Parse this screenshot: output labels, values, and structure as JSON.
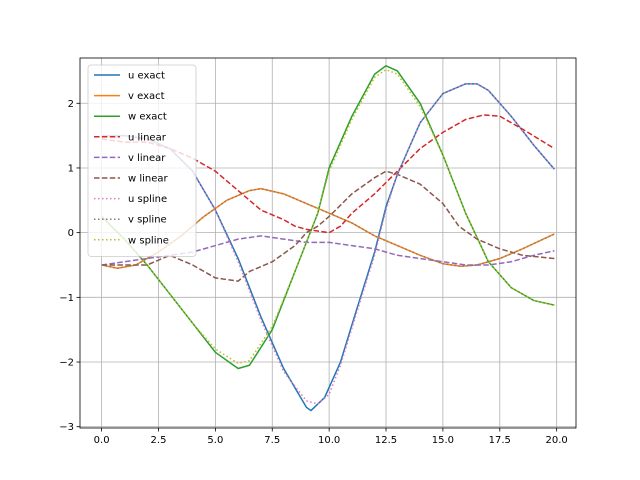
{
  "chart_data": {
    "type": "line",
    "title": "",
    "xlabel": "",
    "ylabel": "",
    "xlim": [
      -0.95,
      20.85
    ],
    "ylim": [
      -3.02,
      2.7
    ],
    "xticks": [
      0.0,
      2.5,
      5.0,
      7.5,
      10.0,
      12.5,
      15.0,
      17.5,
      20.0
    ],
    "xtick_labels": [
      "0.0",
      "2.5",
      "5.0",
      "7.5",
      "10.0",
      "12.5",
      "15.0",
      "17.5",
      "20.0"
    ],
    "yticks": [
      -3,
      -2,
      -1,
      0,
      1,
      2
    ],
    "ytick_labels": [
      "−3",
      "−2",
      "−1",
      "0",
      "1",
      "2"
    ],
    "grid": true,
    "legend_position": "top-left",
    "series": [
      {
        "name": "u exact",
        "color": "#1f77b4",
        "style": "solid",
        "points": [
          [
            0,
            1.5
          ],
          [
            1,
            1.5
          ],
          [
            2,
            1.45
          ],
          [
            3,
            1.3
          ],
          [
            4,
            0.95
          ],
          [
            5,
            0.35
          ],
          [
            6,
            -0.4
          ],
          [
            7,
            -1.3
          ],
          [
            8,
            -2.1
          ],
          [
            9,
            -2.7
          ],
          [
            9.2,
            -2.75
          ],
          [
            9.8,
            -2.55
          ],
          [
            10.5,
            -2.0
          ],
          [
            11.2,
            -1.2
          ],
          [
            12,
            -0.3
          ],
          [
            12.5,
            0.4
          ],
          [
            13,
            0.9
          ],
          [
            14,
            1.7
          ],
          [
            15,
            2.15
          ],
          [
            16,
            2.3
          ],
          [
            16.5,
            2.3
          ],
          [
            17,
            2.2
          ],
          [
            18,
            1.8
          ],
          [
            19,
            1.35
          ],
          [
            19.9,
            0.98
          ]
        ]
      },
      {
        "name": "v exact",
        "color": "#ff7f0e",
        "style": "solid",
        "points": [
          [
            0,
            -0.5
          ],
          [
            0.7,
            -0.55
          ],
          [
            1.5,
            -0.5
          ],
          [
            2.5,
            -0.3
          ],
          [
            3.5,
            -0.05
          ],
          [
            4.5,
            0.25
          ],
          [
            5.5,
            0.5
          ],
          [
            6.5,
            0.65
          ],
          [
            7,
            0.68
          ],
          [
            8,
            0.6
          ],
          [
            9,
            0.45
          ],
          [
            10,
            0.3
          ],
          [
            11,
            0.15
          ],
          [
            12,
            -0.05
          ],
          [
            13,
            -0.2
          ],
          [
            14,
            -0.35
          ],
          [
            15,
            -0.48
          ],
          [
            15.8,
            -0.52
          ],
          [
            16.5,
            -0.5
          ],
          [
            17.5,
            -0.4
          ],
          [
            18.5,
            -0.25
          ],
          [
            19.9,
            -0.02
          ]
        ]
      },
      {
        "name": "w exact",
        "color": "#2ca02c",
        "style": "solid",
        "points": [
          [
            0,
            0.25
          ],
          [
            1,
            -0.1
          ],
          [
            2,
            -0.5
          ],
          [
            3,
            -0.95
          ],
          [
            4,
            -1.4
          ],
          [
            5,
            -1.85
          ],
          [
            6,
            -2.1
          ],
          [
            6.5,
            -2.05
          ],
          [
            7.5,
            -1.5
          ],
          [
            8.5,
            -0.6
          ],
          [
            9.5,
            0.3
          ],
          [
            10,
            1.0
          ],
          [
            11,
            1.8
          ],
          [
            12,
            2.45
          ],
          [
            12.5,
            2.58
          ],
          [
            13,
            2.5
          ],
          [
            14,
            2.0
          ],
          [
            15,
            1.2
          ],
          [
            16,
            0.3
          ],
          [
            17,
            -0.45
          ],
          [
            18,
            -0.85
          ],
          [
            19,
            -1.05
          ],
          [
            19.9,
            -1.12
          ]
        ]
      },
      {
        "name": "u linear",
        "color": "#d62728",
        "style": "dashed",
        "points": [
          [
            0,
            1.45
          ],
          [
            1,
            1.4
          ],
          [
            2,
            1.4
          ],
          [
            3,
            1.3
          ],
          [
            4,
            1.15
          ],
          [
            5,
            0.95
          ],
          [
            6,
            0.65
          ],
          [
            7,
            0.35
          ],
          [
            8,
            0.2
          ],
          [
            8.5,
            0.1
          ],
          [
            9,
            0.05
          ],
          [
            10,
            0.0
          ],
          [
            10.5,
            0.1
          ],
          [
            11,
            0.3
          ],
          [
            12,
            0.6
          ],
          [
            13,
            0.95
          ],
          [
            14,
            1.3
          ],
          [
            15,
            1.55
          ],
          [
            16,
            1.75
          ],
          [
            16.8,
            1.82
          ],
          [
            17.5,
            1.8
          ],
          [
            18.5,
            1.6
          ],
          [
            19.2,
            1.45
          ],
          [
            19.9,
            1.3
          ]
        ]
      },
      {
        "name": "v linear",
        "color": "#9467bd",
        "style": "dashed",
        "points": [
          [
            0,
            -0.5
          ],
          [
            1,
            -0.45
          ],
          [
            2,
            -0.4
          ],
          [
            3,
            -0.35
          ],
          [
            4,
            -0.3
          ],
          [
            5,
            -0.2
          ],
          [
            6,
            -0.1
          ],
          [
            7,
            -0.05
          ],
          [
            8,
            -0.1
          ],
          [
            9,
            -0.15
          ],
          [
            10,
            -0.15
          ],
          [
            11,
            -0.2
          ],
          [
            12,
            -0.25
          ],
          [
            13,
            -0.35
          ],
          [
            14,
            -0.4
          ],
          [
            15,
            -0.45
          ],
          [
            16,
            -0.5
          ],
          [
            17,
            -0.5
          ],
          [
            18,
            -0.45
          ],
          [
            19,
            -0.35
          ],
          [
            19.9,
            -0.28
          ]
        ]
      },
      {
        "name": "w linear",
        "color": "#8c564b",
        "style": "dashed",
        "points": [
          [
            0,
            -0.5
          ],
          [
            1,
            -0.5
          ],
          [
            2,
            -0.5
          ],
          [
            3,
            -0.35
          ],
          [
            4,
            -0.5
          ],
          [
            5,
            -0.7
          ],
          [
            6,
            -0.75
          ],
          [
            6.5,
            -0.6
          ],
          [
            7.5,
            -0.45
          ],
          [
            8.5,
            -0.2
          ],
          [
            9,
            0.0
          ],
          [
            9.5,
            0.1
          ],
          [
            10,
            0.25
          ],
          [
            11,
            0.6
          ],
          [
            12,
            0.85
          ],
          [
            12.5,
            0.95
          ],
          [
            13,
            0.9
          ],
          [
            14,
            0.75
          ],
          [
            15,
            0.45
          ],
          [
            15.7,
            0.1
          ],
          [
            16.5,
            -0.1
          ],
          [
            17.5,
            -0.25
          ],
          [
            18.5,
            -0.35
          ],
          [
            19.9,
            -0.4
          ]
        ]
      },
      {
        "name": "u spline",
        "color": "#e377c2",
        "style": "dotted",
        "points": [
          [
            0,
            1.5
          ],
          [
            1,
            1.5
          ],
          [
            2,
            1.45
          ],
          [
            3,
            1.3
          ],
          [
            4,
            0.95
          ],
          [
            5,
            0.35
          ],
          [
            6,
            -0.45
          ],
          [
            7,
            -1.35
          ],
          [
            8,
            -2.15
          ],
          [
            9,
            -2.6
          ],
          [
            9.5,
            -2.65
          ],
          [
            10,
            -2.5
          ],
          [
            10.5,
            -2.05
          ],
          [
            11.2,
            -1.25
          ],
          [
            12,
            -0.35
          ],
          [
            12.5,
            0.35
          ],
          [
            13,
            0.9
          ],
          [
            14,
            1.7
          ],
          [
            15,
            2.15
          ],
          [
            16,
            2.3
          ],
          [
            16.5,
            2.3
          ],
          [
            17,
            2.2
          ],
          [
            18,
            1.8
          ],
          [
            19,
            1.35
          ],
          [
            19.9,
            0.98
          ]
        ]
      },
      {
        "name": "v spline",
        "color": "#7f7f7f",
        "style": "dotted",
        "points": [
          [
            0,
            -0.5
          ],
          [
            0.7,
            -0.55
          ],
          [
            1.5,
            -0.5
          ],
          [
            2.5,
            -0.3
          ],
          [
            3.5,
            -0.05
          ],
          [
            4.5,
            0.25
          ],
          [
            5.5,
            0.5
          ],
          [
            6.5,
            0.65
          ],
          [
            7,
            0.68
          ],
          [
            8,
            0.6
          ],
          [
            9,
            0.45
          ],
          [
            10,
            0.3
          ],
          [
            11,
            0.15
          ],
          [
            12,
            -0.05
          ],
          [
            13,
            -0.2
          ],
          [
            14,
            -0.35
          ],
          [
            15,
            -0.48
          ],
          [
            15.8,
            -0.52
          ],
          [
            16.5,
            -0.5
          ],
          [
            17.5,
            -0.4
          ],
          [
            18.5,
            -0.25
          ],
          [
            19.9,
            -0.02
          ]
        ]
      },
      {
        "name": "w spline",
        "color": "#bcbd22",
        "style": "dotted",
        "points": [
          [
            0,
            0.25
          ],
          [
            1,
            -0.1
          ],
          [
            2,
            -0.5
          ],
          [
            3,
            -0.95
          ],
          [
            4,
            -1.4
          ],
          [
            5,
            -1.8
          ],
          [
            6,
            -2.02
          ],
          [
            6.5,
            -1.98
          ],
          [
            7.5,
            -1.45
          ],
          [
            8.5,
            -0.6
          ],
          [
            9.5,
            0.3
          ],
          [
            10,
            0.95
          ],
          [
            11,
            1.75
          ],
          [
            12,
            2.4
          ],
          [
            12.5,
            2.52
          ],
          [
            13,
            2.45
          ],
          [
            14,
            1.95
          ],
          [
            15,
            1.2
          ],
          [
            16,
            0.3
          ],
          [
            17,
            -0.45
          ],
          [
            18,
            -0.85
          ],
          [
            19,
            -1.05
          ],
          [
            19.9,
            -1.12
          ]
        ]
      }
    ]
  }
}
